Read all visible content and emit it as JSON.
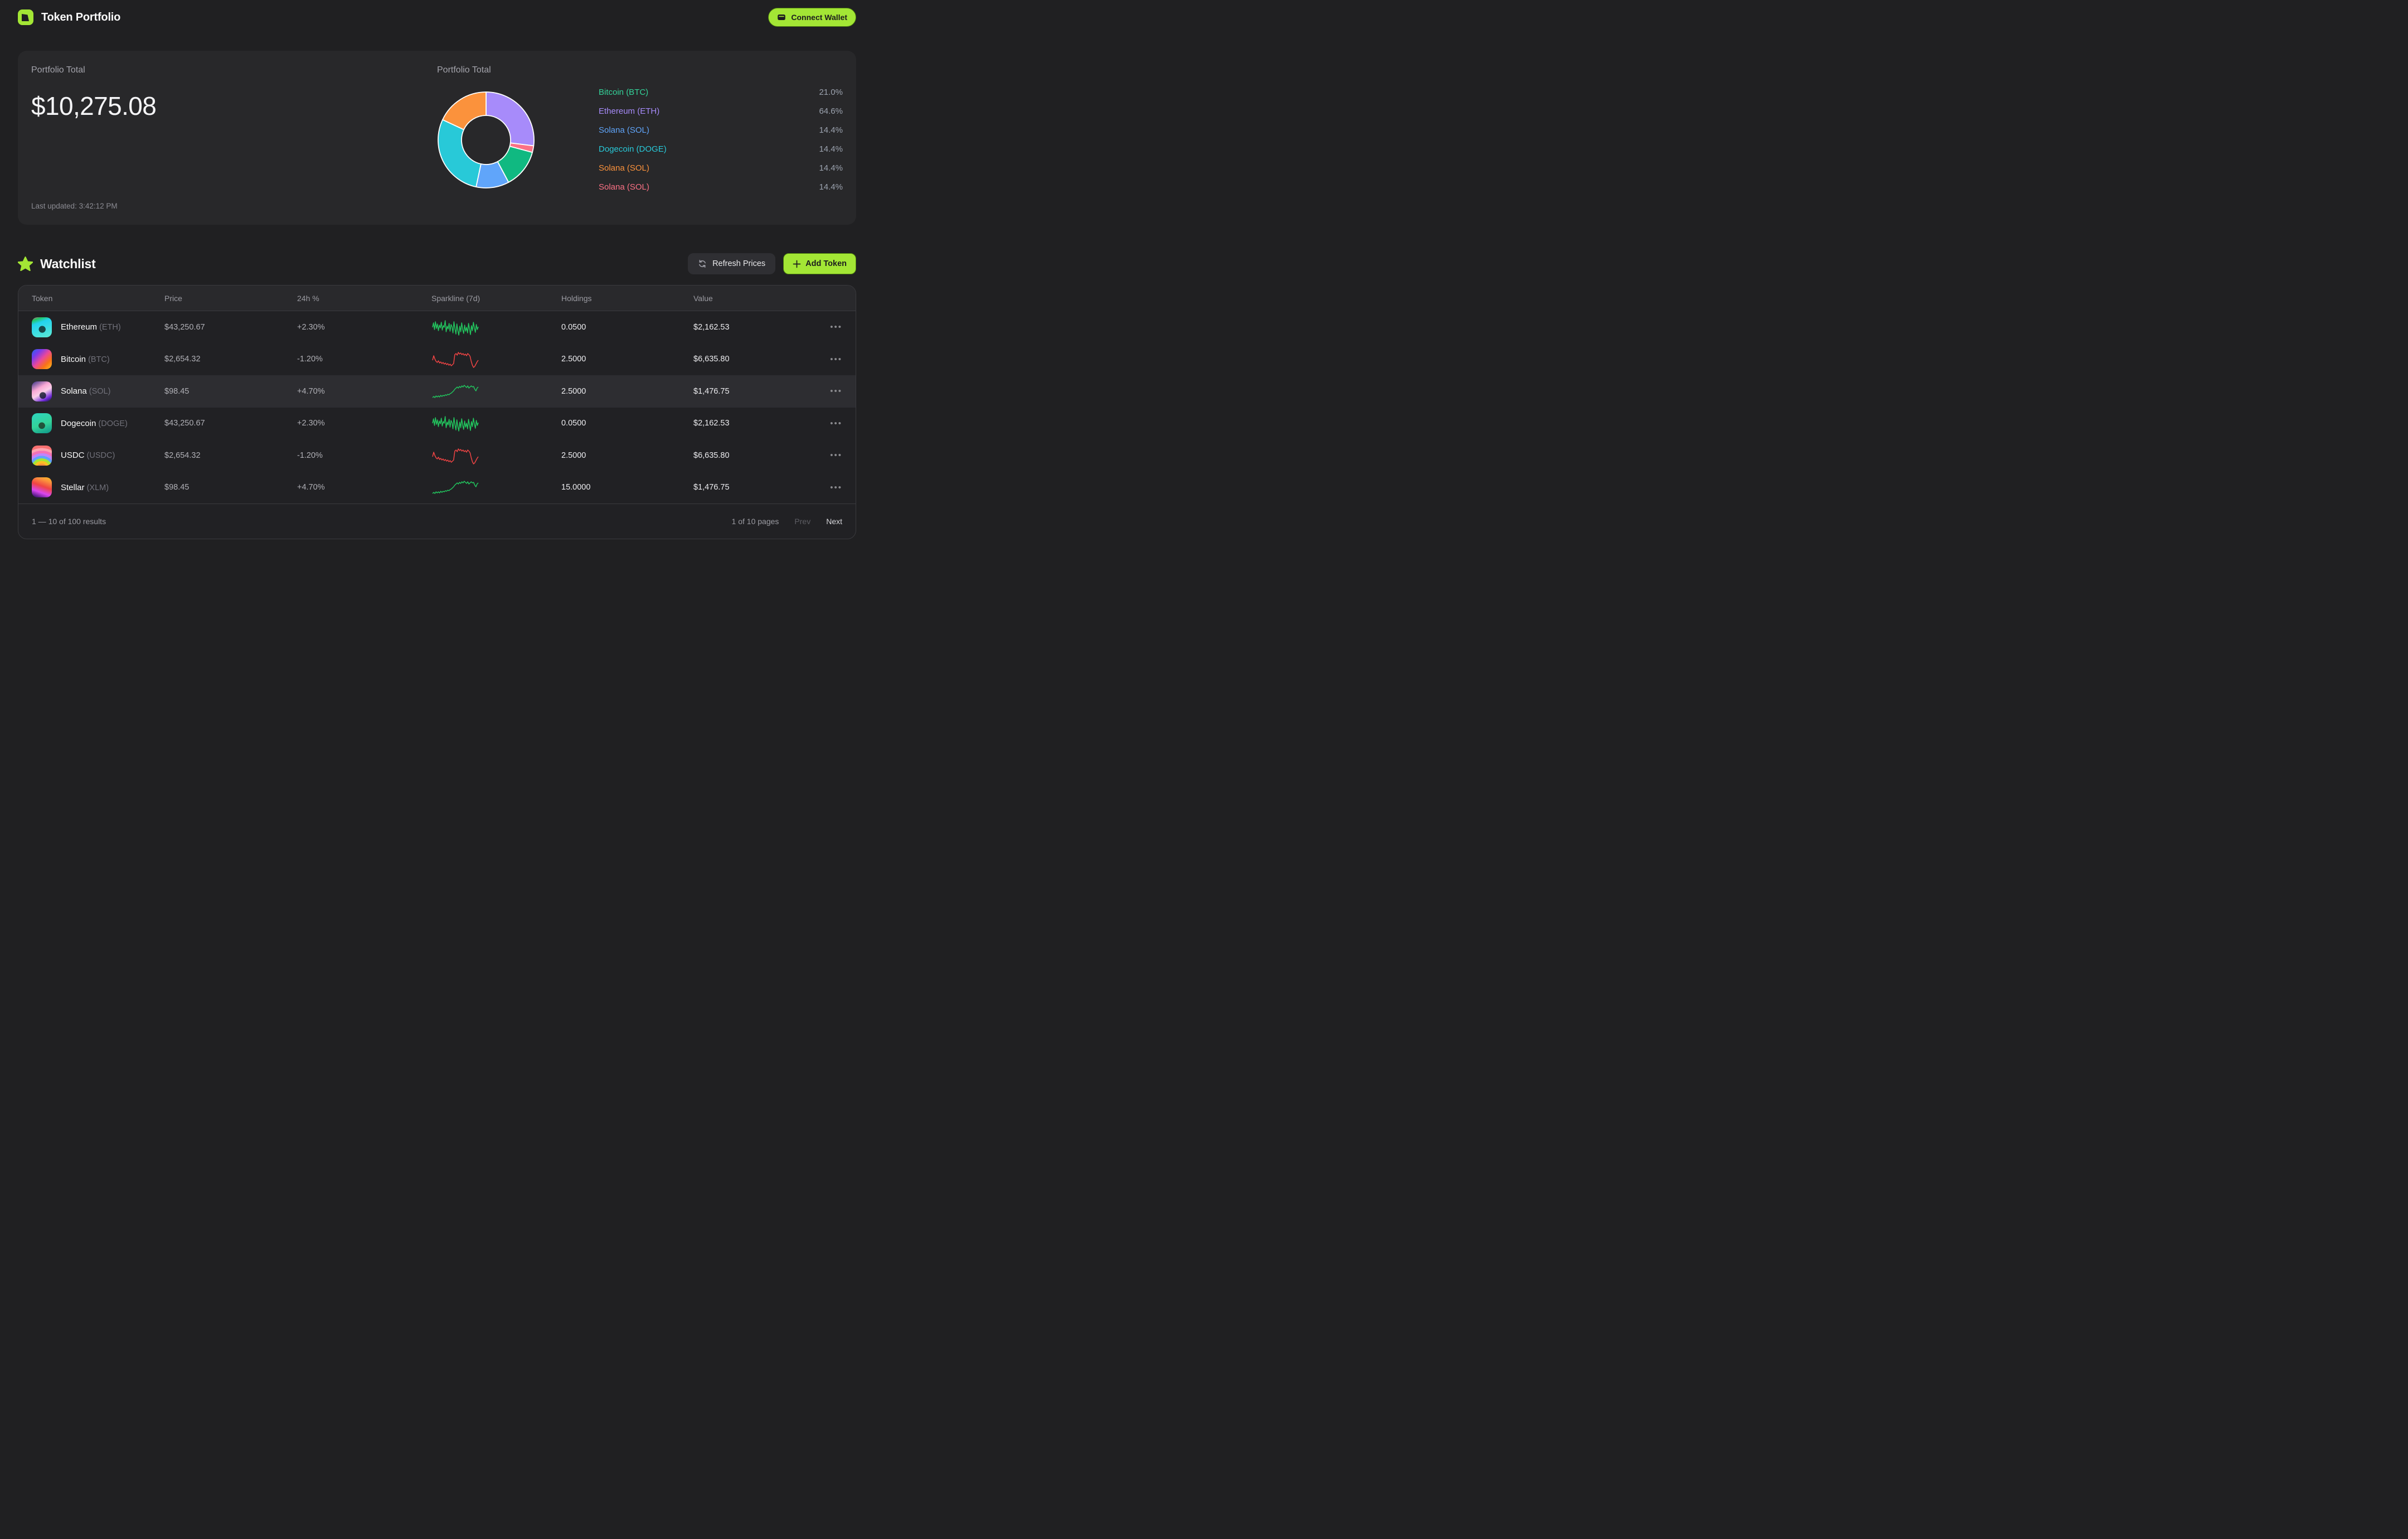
{
  "header": {
    "title": "Token Portfolio",
    "connect_wallet_label": "Connect Wallet"
  },
  "portfolio": {
    "total_label": "Portfolio Total",
    "total_value": "$10,275.08",
    "last_updated": "Last updated: 3:42:12 PM",
    "chart_title": "Portfolio Total"
  },
  "chart_data": {
    "type": "pie",
    "title": "Portfolio Total",
    "legend_position": "right",
    "donut_hole_ratio": 0.5,
    "slices": [
      {
        "label": "Ethereum (ETH)",
        "color": "#a78bfa",
        "sweep_deg": 97
      },
      {
        "label": "Solana (SOL)",
        "color": "#fb7185",
        "sweep_deg": 8
      },
      {
        "label": "Bitcoin (BTC)",
        "color": "#10b981",
        "sweep_deg": 47
      },
      {
        "label": "Solana (SOL)",
        "color": "#60a5fa",
        "sweep_deg": 40
      },
      {
        "label": "Dogecoin (DOGE)",
        "color": "#28c9d8",
        "sweep_deg": 103
      },
      {
        "label": "Solana (SOL)",
        "color": "#fb923c",
        "sweep_deg": 65
      }
    ],
    "legend": [
      {
        "label": "Bitcoin (BTC)",
        "color": "#34d399",
        "pct": "21.0%"
      },
      {
        "label": "Ethereum (ETH)",
        "color": "#a78bfa",
        "pct": "64.6%"
      },
      {
        "label": "Solana (SOL)",
        "color": "#60a5fa",
        "pct": "14.4%"
      },
      {
        "label": "Dogecoin (DOGE)",
        "color": "#28c9d8",
        "pct": "14.4%"
      },
      {
        "label": "Solana (SOL)",
        "color": "#fb923c",
        "pct": "14.4%"
      },
      {
        "label": "Solana (SOL)",
        "color": "#fb7185",
        "pct": "14.4%"
      }
    ]
  },
  "watchlist": {
    "title": "Watchlist",
    "refresh_label": "Refresh Prices",
    "add_token_label": "Add Token",
    "columns": [
      "Token",
      "Price",
      "24h %",
      "Sparkline (7d)",
      "Holdings",
      "Value"
    ],
    "rows": [
      {
        "name": "Ethereum",
        "ticker": "(ETH)",
        "price": "$43,250.67",
        "change": "+2.30%",
        "spark": "noisy_up",
        "spark_color": "green",
        "holdings": "0.0500",
        "value": "$2,162.53",
        "avatar": "ape-cyan",
        "highlight": false
      },
      {
        "name": "Bitcoin",
        "ticker": "(BTC)",
        "price": "$2,654.32",
        "change": "-1.20%",
        "spark": "down",
        "spark_color": "red",
        "holdings": "2.5000",
        "value": "$6,635.80",
        "avatar": "gradient-prism",
        "highlight": false
      },
      {
        "name": "Solana",
        "ticker": "(SOL)",
        "price": "$98.45",
        "change": "+4.70%",
        "spark": "up",
        "spark_color": "green",
        "holdings": "2.5000",
        "value": "$1,476.75",
        "avatar": "doodle-pink",
        "highlight": true
      },
      {
        "name": "Dogecoin",
        "ticker": "(DOGE)",
        "price": "$43,250.67",
        "change": "+2.30%",
        "spark": "noisy_up",
        "spark_color": "green",
        "holdings": "0.0500",
        "value": "$2,162.53",
        "avatar": "ape-mint",
        "highlight": false
      },
      {
        "name": "USDC",
        "ticker": "(USDC)",
        "price": "$2,654.32",
        "change": "-1.20%",
        "spark": "down",
        "spark_color": "red",
        "holdings": "2.5000",
        "value": "$6,635.80",
        "avatar": "rainbow-arcs",
        "highlight": false
      },
      {
        "name": "Stellar",
        "ticker": "(XLM)",
        "price": "$98.45",
        "change": "+4.70%",
        "spark": "up",
        "spark_color": "green",
        "holdings": "15.0000",
        "value": "$1,476.75",
        "avatar": "lava",
        "highlight": false
      }
    ],
    "footer": {
      "results": "1 — 10 of 100 results",
      "pages": "1 of 10 pages",
      "prev": "Prev",
      "next": "Next"
    }
  },
  "sparkline_shapes": {
    "noisy_up": [
      16,
      8,
      20,
      6,
      18,
      10,
      22,
      12,
      17,
      7,
      21,
      13,
      16,
      4,
      24,
      14,
      19,
      9,
      23,
      11,
      15,
      26,
      6,
      18,
      28,
      10,
      22,
      30,
      14,
      24,
      8,
      20,
      27,
      12,
      23,
      16,
      26,
      9,
      19,
      29,
      13,
      22,
      7,
      17,
      25,
      11,
      20,
      15
    ],
    "down": [
      18,
      10,
      16,
      20,
      22,
      19,
      23,
      21,
      24,
      22,
      25,
      23,
      26,
      24,
      27,
      25,
      28,
      26,
      24,
      8,
      6,
      9,
      4,
      7,
      5,
      8,
      6,
      9,
      7,
      10,
      6,
      8,
      11,
      20,
      27,
      31,
      29,
      25,
      21,
      18
    ],
    "up": [
      27,
      25,
      27,
      24,
      26,
      24,
      26,
      23,
      25,
      23,
      24,
      22,
      23,
      21,
      22,
      20,
      19,
      17,
      15,
      12,
      10,
      8,
      10,
      7,
      9,
      6,
      8,
      5,
      7,
      9,
      6,
      10,
      8,
      6,
      8,
      7,
      12,
      15,
      10,
      8
    ]
  },
  "colors": {
    "accent": "#a3e635",
    "spark_green": "#22c55e",
    "spark_red": "#ef4444"
  }
}
